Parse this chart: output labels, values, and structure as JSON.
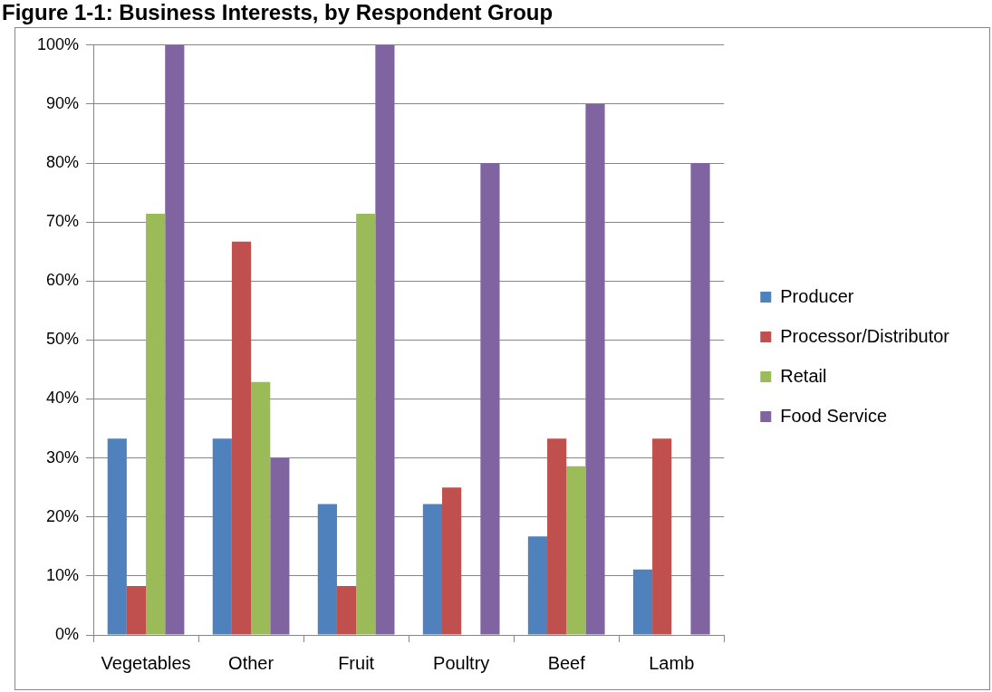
{
  "chart_data": {
    "type": "bar",
    "title": "Figure 1-1: Business Interests, by Respondent Group",
    "categories": [
      "Vegetables",
      "Other",
      "Fruit",
      "Poultry",
      "Beef",
      "Lamb"
    ],
    "series": [
      {
        "name": "Producer",
        "color": "#4f81bd",
        "values": [
          33.3,
          33.3,
          22.2,
          22.2,
          16.7,
          11.1
        ]
      },
      {
        "name": "Processor/Distributor",
        "color": "#c0504d",
        "values": [
          8.3,
          66.7,
          8.3,
          25,
          33.3,
          33.3
        ]
      },
      {
        "name": "Retail",
        "color": "#9bbb59",
        "values": [
          71.4,
          42.9,
          71.4,
          null,
          28.6,
          null
        ]
      },
      {
        "name": "Food Service",
        "color": "#8064a2",
        "values": [
          100,
          30,
          100,
          80,
          90,
          80
        ]
      }
    ],
    "ylim": [
      0,
      100
    ],
    "yticks": [
      {
        "value": 0,
        "label": "0%"
      },
      {
        "value": 10,
        "label": "10%"
      },
      {
        "value": 20,
        "label": "20%"
      },
      {
        "value": 30,
        "label": "30%"
      },
      {
        "value": 40,
        "label": "40%"
      },
      {
        "value": 50,
        "label": "50%"
      },
      {
        "value": 60,
        "label": "60%"
      },
      {
        "value": 70,
        "label": "70%"
      },
      {
        "value": 80,
        "label": "80%"
      },
      {
        "value": 90,
        "label": "90%"
      },
      {
        "value": 100,
        "label": "100%"
      }
    ],
    "grid": "y",
    "legend": "right"
  }
}
